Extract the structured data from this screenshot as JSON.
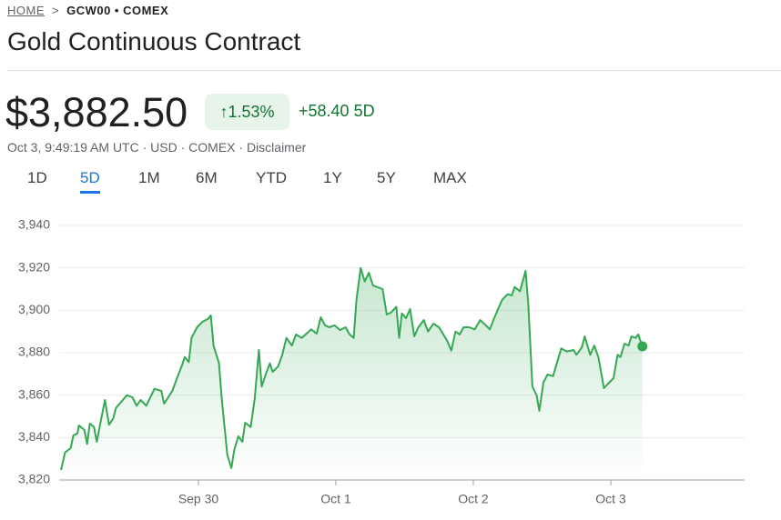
{
  "header": {
    "breadcrumb": [
      "HOME",
      "GCW00 • COMEX"
    ],
    "title": "Gold Continuous Contract",
    "price": "$3,882.50",
    "change_percent": "1.53%",
    "change": "+58.40",
    "period": "5D",
    "meta": "Oct 3, 9:49:19 AM UTC · USD · COMEX ·",
    "disclaimer": "Disclaimer"
  },
  "tabs": [
    "1D",
    "5D",
    "1M",
    "6M",
    "YTD",
    "1Y",
    "5Y",
    "MAX"
  ],
  "selected_tab": "5D",
  "chart_data": {
    "type": "line",
    "color": "#34a853",
    "x": [
      0,
      0.03,
      0.07,
      0.09,
      0.12,
      0.13,
      0.17,
      0.19,
      0.21,
      0.24,
      0.26,
      0.29,
      0.32,
      0.35,
      0.38,
      0.4,
      0.45,
      0.48,
      0.52,
      0.55,
      0.58,
      0.62,
      0.65,
      0.68,
      0.73,
      0.75,
      0.78,
      0.81,
      0.85,
      0.88,
      0.9,
      0.93,
      0.95,
      0.99,
      1.03,
      1.07,
      1.09,
      1.11,
      1.15,
      1.17,
      1.19,
      1.21,
      1.24,
      1.26,
      1.29,
      1.32,
      1.34,
      1.38,
      1.41,
      1.44,
      1.46,
      1.49,
      1.52,
      1.54,
      1.58,
      1.61,
      1.64,
      1.68,
      1.71,
      1.75,
      1.78,
      1.82,
      1.86,
      1.89,
      1.92,
      1.95,
      1.99,
      2.03,
      2.07,
      2.1,
      2.13,
      2.15,
      2.18,
      2.21,
      2.24,
      2.27,
      2.3,
      2.34,
      2.37,
      2.4,
      2.44,
      2.46,
      2.48,
      2.51,
      2.54,
      2.57,
      2.6,
      2.64,
      2.67,
      2.71,
      2.75,
      2.79,
      2.81,
      2.84,
      2.87,
      2.9,
      2.93,
      2.97,
      3.01,
      3.05,
      3.09,
      3.12,
      3.15,
      3.18,
      3.21,
      3.25,
      3.28,
      3.3,
      3.34,
      3.38,
      3.4,
      3.43,
      3.46,
      3.48,
      3.51,
      3.54,
      3.58,
      3.61,
      3.64,
      3.68,
      3.73,
      3.75,
      3.79,
      3.81,
      3.85,
      3.88,
      3.91,
      3.95,
      3.98,
      4.02,
      4.05,
      4.07,
      4.1,
      4.13,
      4.15,
      4.18,
      4.2,
      4.23
    ],
    "values": [
      3824.7,
      3833,
      3835,
      3841,
      3842,
      3845.7,
      3843.6,
      3837,
      3846.6,
      3845,
      3838,
      3848,
      3857.7,
      3846,
      3849,
      3854,
      3857.7,
      3860,
      3859,
      3855,
      3857.7,
      3855,
      3859,
      3863,
      3862,
      3856,
      3859,
      3862,
      3869,
      3874,
      3878,
      3875.6,
      3887,
      3892,
      3894.6,
      3896,
      3897.6,
      3883.4,
      3875,
      3858,
      3845,
      3832,
      3825.6,
      3834,
      3840.6,
      3838,
      3847,
      3845,
      3858.6,
      3881.3,
      3864,
      3870,
      3875,
      3871,
      3873.6,
      3879,
      3887,
      3883.4,
      3888.6,
      3887,
      3888.6,
      3891,
      3889,
      3896.7,
      3893,
      3892,
      3892.9,
      3890.7,
      3892,
      3888.6,
      3887,
      3905,
      3920,
      3913.6,
      3917.7,
      3911.7,
      3911,
      3910,
      3898,
      3898.9,
      3901.6,
      3887,
      3898.6,
      3896.3,
      3900.6,
      3887.7,
      3892,
      3895.4,
      3890,
      3893.7,
      3892,
      3887.7,
      3885.6,
      3881,
      3890,
      3888.6,
      3892,
      3892,
      3891,
      3895.4,
      3893,
      3891,
      3896,
      3900.6,
      3905,
      3907.6,
      3907,
      3911,
      3909,
      3918.6,
      3902.7,
      3864,
      3860,
      3852.6,
      3866,
      3869.7,
      3869,
      3875.6,
      3882,
      3880.6,
      3881.3,
      3879,
      3882.6,
      3887.7,
      3879,
      3883.4,
      3877.9,
      3863.3,
      3865.4,
      3868,
      3879,
      3878,
      3884.3,
      3883.4,
      3887.7,
      3887,
      3888.6,
      3883
    ],
    "xlim": [
      0,
      5
    ],
    "xticks": [
      {
        "value": 1,
        "label": "Sep 30"
      },
      {
        "value": 2,
        "label": "Oct 1"
      },
      {
        "value": 3,
        "label": "Oct 2"
      },
      {
        "value": 4,
        "label": "Oct 3"
      }
    ],
    "ylim": [
      3820,
      3940
    ],
    "yticks": [
      {
        "value": 3820,
        "label": "3,820"
      },
      {
        "value": 3840,
        "label": "3,840"
      },
      {
        "value": 3860,
        "label": "3,860"
      },
      {
        "value": 3880,
        "label": "3,880"
      },
      {
        "value": 3900,
        "label": "3,900"
      },
      {
        "value": 3920,
        "label": "3,920"
      },
      {
        "value": 3940,
        "label": "3,940"
      }
    ],
    "grid": true
  }
}
